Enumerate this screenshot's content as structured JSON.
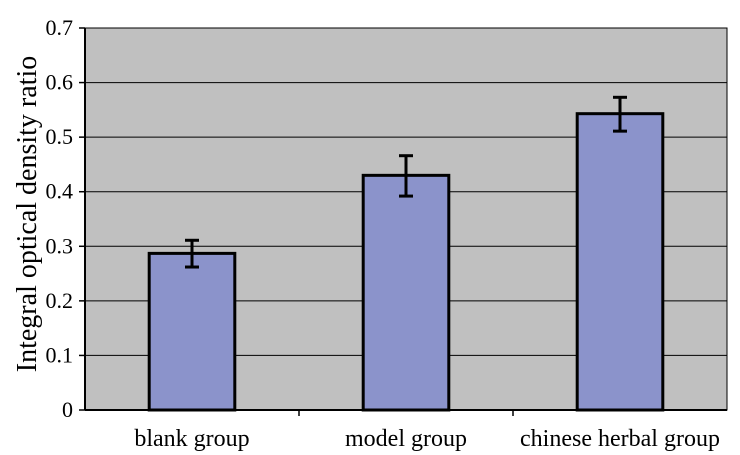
{
  "chart_data": {
    "type": "bar",
    "title": "",
    "xlabel": "",
    "ylabel": "Integral optical density ratio",
    "categories": [
      "blank group",
      "model group",
      "chinese herbal group"
    ],
    "values": [
      0.287,
      0.43,
      0.543
    ],
    "error_bars": [
      {
        "low": 0.262,
        "high": 0.311
      },
      {
        "low": 0.392,
        "high": 0.466
      },
      {
        "low": 0.511,
        "high": 0.573
      }
    ],
    "ylim": [
      0,
      0.7
    ],
    "yticks": [
      0,
      0.1,
      0.2,
      0.3,
      0.4,
      0.5,
      0.6,
      0.7
    ],
    "ytick_labels": [
      "0",
      "0.1",
      "0.2",
      "0.3",
      "0.4",
      "0.5",
      "0.6",
      "0.7"
    ],
    "grid": true,
    "legend": "none",
    "colors": {
      "plot_background": "#c0c0c0",
      "bar_fill": "#8b93cb",
      "bar_stroke": "#000000",
      "grid": "#000000",
      "axis": "#000000"
    }
  }
}
